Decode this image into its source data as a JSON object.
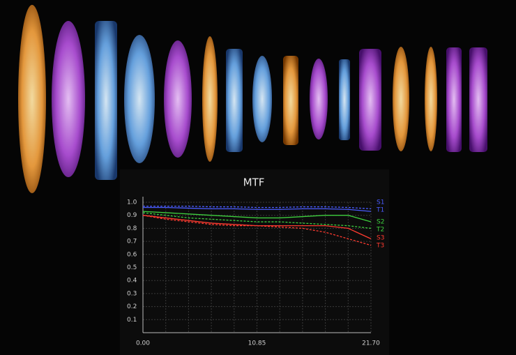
{
  "chart_data": {
    "type": "line",
    "title": "MTF",
    "x": [
      0,
      2.17,
      4.34,
      6.51,
      8.68,
      10.85,
      13.02,
      15.19,
      17.36,
      19.53,
      21.7
    ],
    "xlim": [
      0,
      21.7
    ],
    "xticks": [
      {
        "value": 0,
        "label": "0.00"
      },
      {
        "value": 10.85,
        "label": "10.85"
      },
      {
        "value": 21.7,
        "label": "21.70"
      }
    ],
    "ylim": [
      0,
      1
    ],
    "yticks": [
      0.1,
      0.2,
      0.3,
      0.4,
      0.5,
      0.6,
      0.7,
      0.8,
      0.9,
      {
        "value": 1,
        "label": "1.0"
      }
    ],
    "grid": true,
    "legend": "right",
    "series": [
      {
        "name": "S1",
        "color": "#4a5cff",
        "linestyle": "solid",
        "values": [
          0.96,
          0.96,
          0.955,
          0.95,
          0.95,
          0.945,
          0.945,
          0.95,
          0.95,
          0.945,
          0.93
        ]
      },
      {
        "name": "T1",
        "color": "#4a5cff",
        "linestyle": "dashed",
        "values": [
          0.97,
          0.97,
          0.97,
          0.965,
          0.965,
          0.96,
          0.96,
          0.965,
          0.965,
          0.96,
          0.95
        ]
      },
      {
        "name": "S2",
        "color": "#3ecf3e",
        "linestyle": "solid",
        "values": [
          0.93,
          0.92,
          0.91,
          0.9,
          0.89,
          0.88,
          0.88,
          0.89,
          0.9,
          0.9,
          0.85
        ]
      },
      {
        "name": "T2",
        "color": "#3ecf3e",
        "linestyle": "dashed",
        "values": [
          0.92,
          0.9,
          0.88,
          0.87,
          0.86,
          0.85,
          0.85,
          0.84,
          0.83,
          0.82,
          0.8
        ]
      },
      {
        "name": "S3",
        "color": "#ff3b30",
        "linestyle": "solid",
        "values": [
          0.9,
          0.88,
          0.86,
          0.84,
          0.83,
          0.82,
          0.82,
          0.82,
          0.82,
          0.8,
          0.72
        ]
      },
      {
        "name": "T3",
        "color": "#ff3b30",
        "linestyle": "dashed",
        "values": [
          0.9,
          0.87,
          0.85,
          0.83,
          0.82,
          0.82,
          0.81,
          0.8,
          0.77,
          0.72,
          0.67
        ]
      }
    ]
  }
}
